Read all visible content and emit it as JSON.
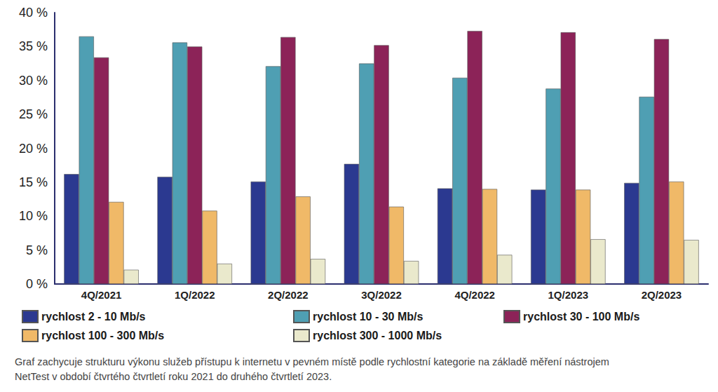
{
  "chart_data": {
    "type": "bar",
    "caption": "Graf zachycuje strukturu výkonu služeb přístupu k internetu v pevném místě podle rychlostní kategorie na základě měření nástrojem NetTest v období čtvrtého čtvrtletí roku 2021 do druhého čtvrtletí 2023.",
    "categories": [
      "4Q/2021",
      "1Q/2022",
      "2Q/2022",
      "3Q/2022",
      "4Q/2022",
      "1Q/2023",
      "2Q/2023"
    ],
    "series": [
      {
        "name": "rychlost 2 - 10 Mb/s",
        "color": "#2b3990",
        "values": [
          16.2,
          15.8,
          15.1,
          17.7,
          14.1,
          13.9,
          14.9
        ]
      },
      {
        "name": "rychlost 10 - 30 Mb/s",
        "color": "#4f9fb3",
        "values": [
          36.5,
          35.6,
          32.1,
          32.5,
          30.4,
          28.8,
          27.6
        ]
      },
      {
        "name": "rychlost 30 - 100 Mb/s",
        "color": "#8c2358",
        "values": [
          33.4,
          35.0,
          36.4,
          35.2,
          37.3,
          37.1,
          36.1
        ]
      },
      {
        "name": "rychlost 100 - 300 Mb/s",
        "color": "#f0b968",
        "values": [
          12.1,
          10.8,
          12.9,
          11.4,
          14.0,
          13.9,
          15.1
        ]
      },
      {
        "name": "rychlost 300 - 1000 Mb/s",
        "color": "#eae9cc",
        "values": [
          2.1,
          3.0,
          3.7,
          3.4,
          4.3,
          6.6,
          6.5
        ]
      }
    ],
    "ylim": [
      0,
      40
    ],
    "yticks": [
      {
        "value": 0,
        "label": "0 %"
      },
      {
        "value": 5,
        "label": "5 %"
      },
      {
        "value": 10,
        "label": "10 %"
      },
      {
        "value": 15,
        "label": "15 %"
      },
      {
        "value": 20,
        "label": "20 %"
      },
      {
        "value": 25,
        "label": "25 %"
      },
      {
        "value": 30,
        "label": "30 %"
      },
      {
        "value": 35,
        "label": "35 %"
      },
      {
        "value": 40,
        "label": "40 %"
      }
    ],
    "grid": false,
    "legend": "bottom"
  }
}
